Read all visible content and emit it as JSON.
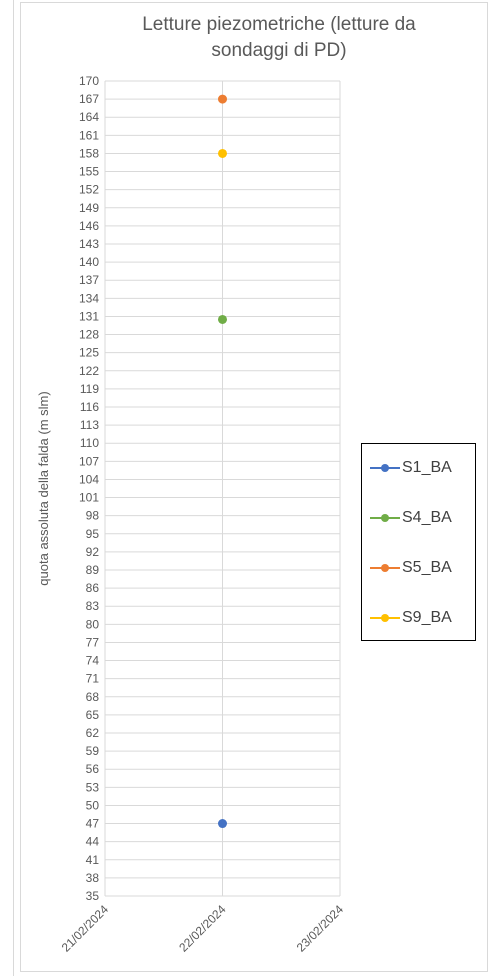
{
  "chart_data": {
    "type": "scatter",
    "title": "Letture piezometriche (letture da sondaggi di PD)",
    "ylabel": "quota assoluta della falda (m slm)",
    "xlabel": "",
    "ylim": [
      35,
      170
    ],
    "y_ticks": [
      35,
      38,
      41,
      44,
      47,
      50,
      53,
      56,
      59,
      62,
      65,
      68,
      71,
      74,
      77,
      80,
      83,
      86,
      89,
      92,
      95,
      98,
      101,
      104,
      107,
      110,
      113,
      116,
      119,
      122,
      125,
      128,
      131,
      134,
      137,
      140,
      143,
      146,
      149,
      152,
      155,
      158,
      161,
      164,
      167,
      170
    ],
    "x_categories": [
      "21/02/2024",
      "22/02/2024",
      "23/02/2024"
    ],
    "grid": true,
    "legend_position": "right",
    "series": [
      {
        "name": "S1_BA",
        "color": "#4472c4",
        "x": "22/02/2024",
        "y": 47
      },
      {
        "name": "S4_BA",
        "color": "#70ad47",
        "x": "22/02/2024",
        "y": 130.5
      },
      {
        "name": "S5_BA",
        "color": "#ed7d31",
        "x": "22/02/2024",
        "y": 167
      },
      {
        "name": "S9_BA",
        "color": "#ffc000",
        "x": "22/02/2024",
        "y": 158
      }
    ]
  },
  "legend": {
    "items": [
      {
        "label": "S1_BA",
        "color": "#4472c4"
      },
      {
        "label": "S4_BA",
        "color": "#70ad47"
      },
      {
        "label": "S5_BA",
        "color": "#ed7d31"
      },
      {
        "label": "S9_BA",
        "color": "#ffc000"
      }
    ]
  }
}
